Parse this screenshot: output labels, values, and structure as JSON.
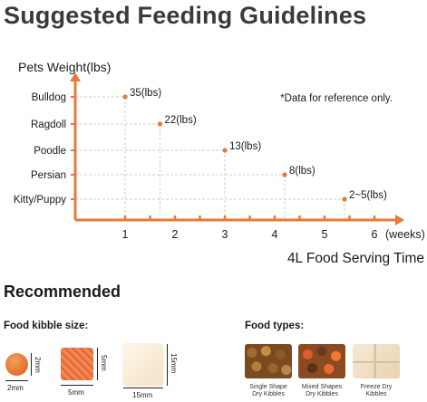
{
  "title": "Suggested Feeding Guidelines",
  "chart_data": {
    "type": "scatter",
    "ylabel": "Pets Weight(lbs)",
    "xlabel": "4L Food Serving Time",
    "x_unit_label": "(weeks)",
    "note": "*Data for reference only.",
    "categories": [
      "Kitty/Puppy",
      "Persian",
      "Poodle",
      "Ragdoll",
      "Bulldog"
    ],
    "x_ticks": [
      1,
      2,
      3,
      4,
      5,
      6
    ],
    "xlim": [
      0,
      6.5
    ],
    "points": [
      {
        "category": "Bulldog",
        "x": 1.0,
        "label": "35(lbs)"
      },
      {
        "category": "Ragdoll",
        "x": 1.7,
        "label": "22(lbs)"
      },
      {
        "category": "Poodle",
        "x": 3.0,
        "label": "13(lbs)"
      },
      {
        "category": "Persian",
        "x": 4.2,
        "label": "8(lbs)"
      },
      {
        "category": "Kitty/Puppy",
        "x": 5.4,
        "label": "2~5(lbs)"
      }
    ],
    "grid": false,
    "colors": {
      "axis": "#e8793a",
      "point": "#e8793a",
      "text": "#1a1a1a"
    }
  },
  "recommended": {
    "title": "Recommended",
    "kibble_size_title": "Food kibble size:",
    "food_types_title": "Food types:",
    "kibbles": [
      {
        "w": "2mm",
        "h": "2mm"
      },
      {
        "w": "5mm",
        "h": "5mm"
      },
      {
        "w": "15mm",
        "h": "15mm"
      }
    ],
    "food_types": [
      {
        "line1": "Single Shape",
        "line2": "Dry Kibbles"
      },
      {
        "line1": "Mixed Shapes",
        "line2": "Dry Kibbles"
      },
      {
        "line1": "Freeze Dry",
        "line2": "Kibbles"
      }
    ]
  }
}
